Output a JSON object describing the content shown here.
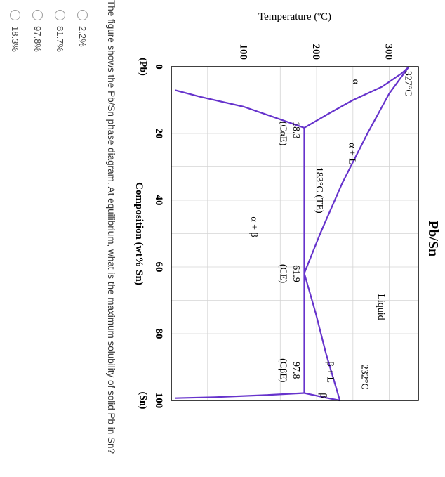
{
  "chart_data": {
    "type": "phase-diagram",
    "title": "Pb/Sn",
    "xlabel": "Composition (wt% Sn)",
    "ylabel": "Temperature (ºC)",
    "xlim": [
      0,
      100
    ],
    "ylim": [
      0,
      340
    ],
    "xticks": [
      "0",
      "20",
      "40",
      "60",
      "80",
      "100"
    ],
    "yticks": [
      "100",
      "200",
      "300"
    ],
    "x_end_labels": {
      "left": "(Pb)",
      "right": "(Sn)"
    },
    "grid": true,
    "curve_color": "#6633cc",
    "curves": [
      {
        "points": [
          [
            0,
            327
          ],
          [
            2,
            317
          ],
          [
            6,
            290
          ],
          [
            10,
            250
          ],
          [
            14,
            217
          ],
          [
            18.3,
            183
          ]
        ]
      },
      {
        "points": [
          [
            0,
            327
          ],
          [
            8,
            300
          ],
          [
            20,
            270
          ],
          [
            35,
            235
          ],
          [
            50,
            205
          ],
          [
            61.9,
            183
          ]
        ]
      },
      {
        "points": [
          [
            61.9,
            183
          ],
          [
            74,
            199
          ],
          [
            86,
            213
          ],
          [
            100,
            232
          ]
        ]
      },
      {
        "points": [
          [
            97.8,
            183
          ],
          [
            99.2,
            213
          ],
          [
            100,
            232
          ]
        ]
      },
      {
        "points": [
          [
            18.3,
            183
          ],
          [
            97.8,
            183
          ]
        ]
      },
      {
        "points": [
          [
            7,
            5
          ],
          [
            9,
            40
          ],
          [
            12,
            100
          ],
          [
            15,
            140
          ],
          [
            18.3,
            183
          ]
        ]
      },
      {
        "points": [
          [
            97.8,
            183
          ],
          [
            98.4,
            130
          ],
          [
            99,
            60
          ],
          [
            99.3,
            5
          ]
        ]
      }
    ],
    "region_labels": [
      {
        "text": "Liquid",
        "x": 72,
        "y": 285
      },
      {
        "text": "α + L",
        "x": 26,
        "y": 245
      },
      {
        "text": "α",
        "x": 4.5,
        "y": 250
      },
      {
        "text": "α + β",
        "x": 48,
        "y": 110
      },
      {
        "text": "β + L",
        "x": 91.5,
        "y": 215
      },
      {
        "text": "β",
        "x": 98.5,
        "y": 205
      }
    ],
    "annotations": [
      {
        "text": "327°C",
        "x": 5,
        "y": 322
      },
      {
        "text": "232°C",
        "x": 93,
        "y": 262
      },
      {
        "text": "183°C (TE)",
        "x": 37,
        "y": 200
      },
      {
        "text": "18.3",
        "x": 19,
        "y": 168
      },
      {
        "text": "(CαE)",
        "x": 20,
        "y": 150
      },
      {
        "text": "61.9",
        "x": 62,
        "y": 168
      },
      {
        "text": "(CE)",
        "x": 62,
        "y": 150
      },
      {
        "text": "97.8",
        "x": 91,
        "y": 168
      },
      {
        "text": "(CβE)",
        "x": 91,
        "y": 150
      }
    ]
  },
  "question": "The figure shows the Pb/Sn phase diagram. At equilibrium, what is the maximum solubility of solid Pb in Sn?",
  "options": [
    "2.2%",
    "81.7%",
    "97.8%",
    "18.3%"
  ]
}
